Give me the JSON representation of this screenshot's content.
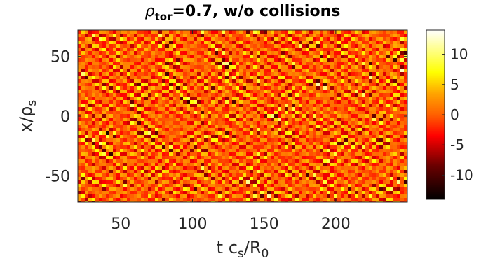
{
  "chart_data": {
    "type": "heatmap",
    "title": {
      "rho": "ρ",
      "sub": "tor",
      "rest": "=0.7, w/o collisions"
    },
    "xlabel": {
      "pre": "t c",
      "sub1": "s",
      "mid": "/R",
      "sub2": "0"
    },
    "ylabel": {
      "pre": "x/ρ",
      "sub": "s"
    },
    "xlim": [
      20,
      250
    ],
    "ylim": [
      -72,
      72
    ],
    "x_ticks": [
      50,
      100,
      150,
      200
    ],
    "y_ticks": [
      -50,
      0,
      50
    ],
    "colorbar": {
      "colormap": "hot",
      "clim": [
        -14,
        14
      ],
      "ticks": [
        -10,
        -5,
        0,
        5,
        10
      ],
      "tick_labels": [
        "-10",
        "-5",
        "0",
        "5",
        "10"
      ]
    },
    "pattern": "turbulent fluctuation field with diagonal streaks, roughly symmetric about zero, amplitude about ±14",
    "grid": false
  },
  "colors": {
    "text": "#262626",
    "axis": "#262626",
    "background": "#ffffff"
  }
}
